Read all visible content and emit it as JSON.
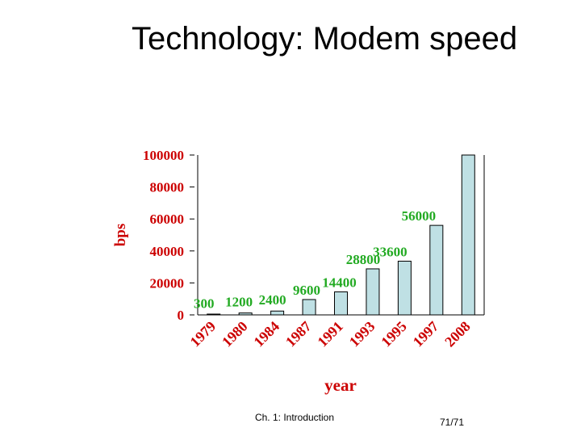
{
  "slide": {
    "title": "Technology: Modem speed",
    "footer_left": "Ch. 1: Introduction",
    "footer_right": "71/71"
  },
  "chart_data": {
    "type": "bar",
    "title": "",
    "xlabel": "year",
    "ylabel": "bps",
    "ylim": [
      0,
      100000
    ],
    "yticks": [
      0,
      20000,
      40000,
      60000,
      80000,
      100000
    ],
    "grid": false,
    "categories": [
      "1979",
      "1980",
      "1984",
      "1987",
      "1991",
      "1993",
      "1995",
      "1997",
      "2008"
    ],
    "values": [
      300,
      1200,
      2400,
      9600,
      14400,
      28800,
      33600,
      56000,
      100000
    ],
    "data_labels": [
      "300",
      "1200",
      "2400",
      "9600",
      "14400",
      "28800",
      "33600",
      "56000",
      ""
    ],
    "colors": {
      "bar": "#bfe0e4",
      "axis_text": "#cc0000",
      "data_label": "#22aa22"
    }
  }
}
